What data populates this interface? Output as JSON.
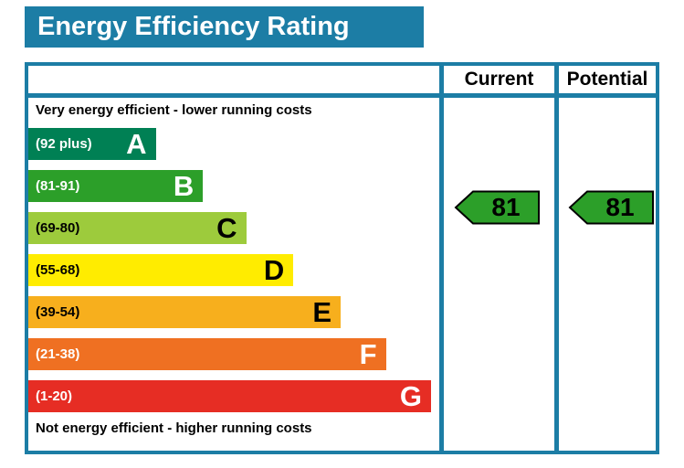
{
  "title": "Energy Efficiency Rating",
  "columns": {
    "current": "Current",
    "potential": "Potential"
  },
  "notes": {
    "top": "Very energy efficient - lower running costs",
    "bottom": "Not energy efficient - higher running costs"
  },
  "accent_color": "#1c7da5",
  "chart_data": {
    "type": "bar",
    "title": "Energy Efficiency Rating",
    "bands": [
      {
        "letter": "A",
        "range": "(92 plus)",
        "min": 92,
        "max": 100,
        "color": "#008054",
        "text_color": "#ffffff",
        "width_pct": 31
      },
      {
        "letter": "B",
        "range": "(81-91)",
        "min": 81,
        "max": 91,
        "color": "#2c9f29",
        "text_color": "#ffffff",
        "width_pct": 42.5
      },
      {
        "letter": "C",
        "range": "(69-80)",
        "min": 69,
        "max": 80,
        "color": "#9dcb3c",
        "text_color": "#000000",
        "width_pct": 53
      },
      {
        "letter": "D",
        "range": "(55-68)",
        "min": 55,
        "max": 68,
        "color": "#ffec00",
        "text_color": "#000000",
        "width_pct": 64.5
      },
      {
        "letter": "E",
        "range": "(39-54)",
        "min": 39,
        "max": 54,
        "color": "#f7af1d",
        "text_color": "#000000",
        "width_pct": 76
      },
      {
        "letter": "F",
        "range": "(21-38)",
        "min": 21,
        "max": 38,
        "color": "#ef7022",
        "text_color": "#ffffff",
        "width_pct": 87
      },
      {
        "letter": "G",
        "range": "(1-20)",
        "min": 1,
        "max": 20,
        "color": "#e62d24",
        "text_color": "#ffffff",
        "width_pct": 98
      }
    ],
    "current": {
      "value": 81,
      "band": "B",
      "color": "#2c9f29"
    },
    "potential": {
      "value": 81,
      "band": "B",
      "color": "#2c9f29"
    }
  }
}
